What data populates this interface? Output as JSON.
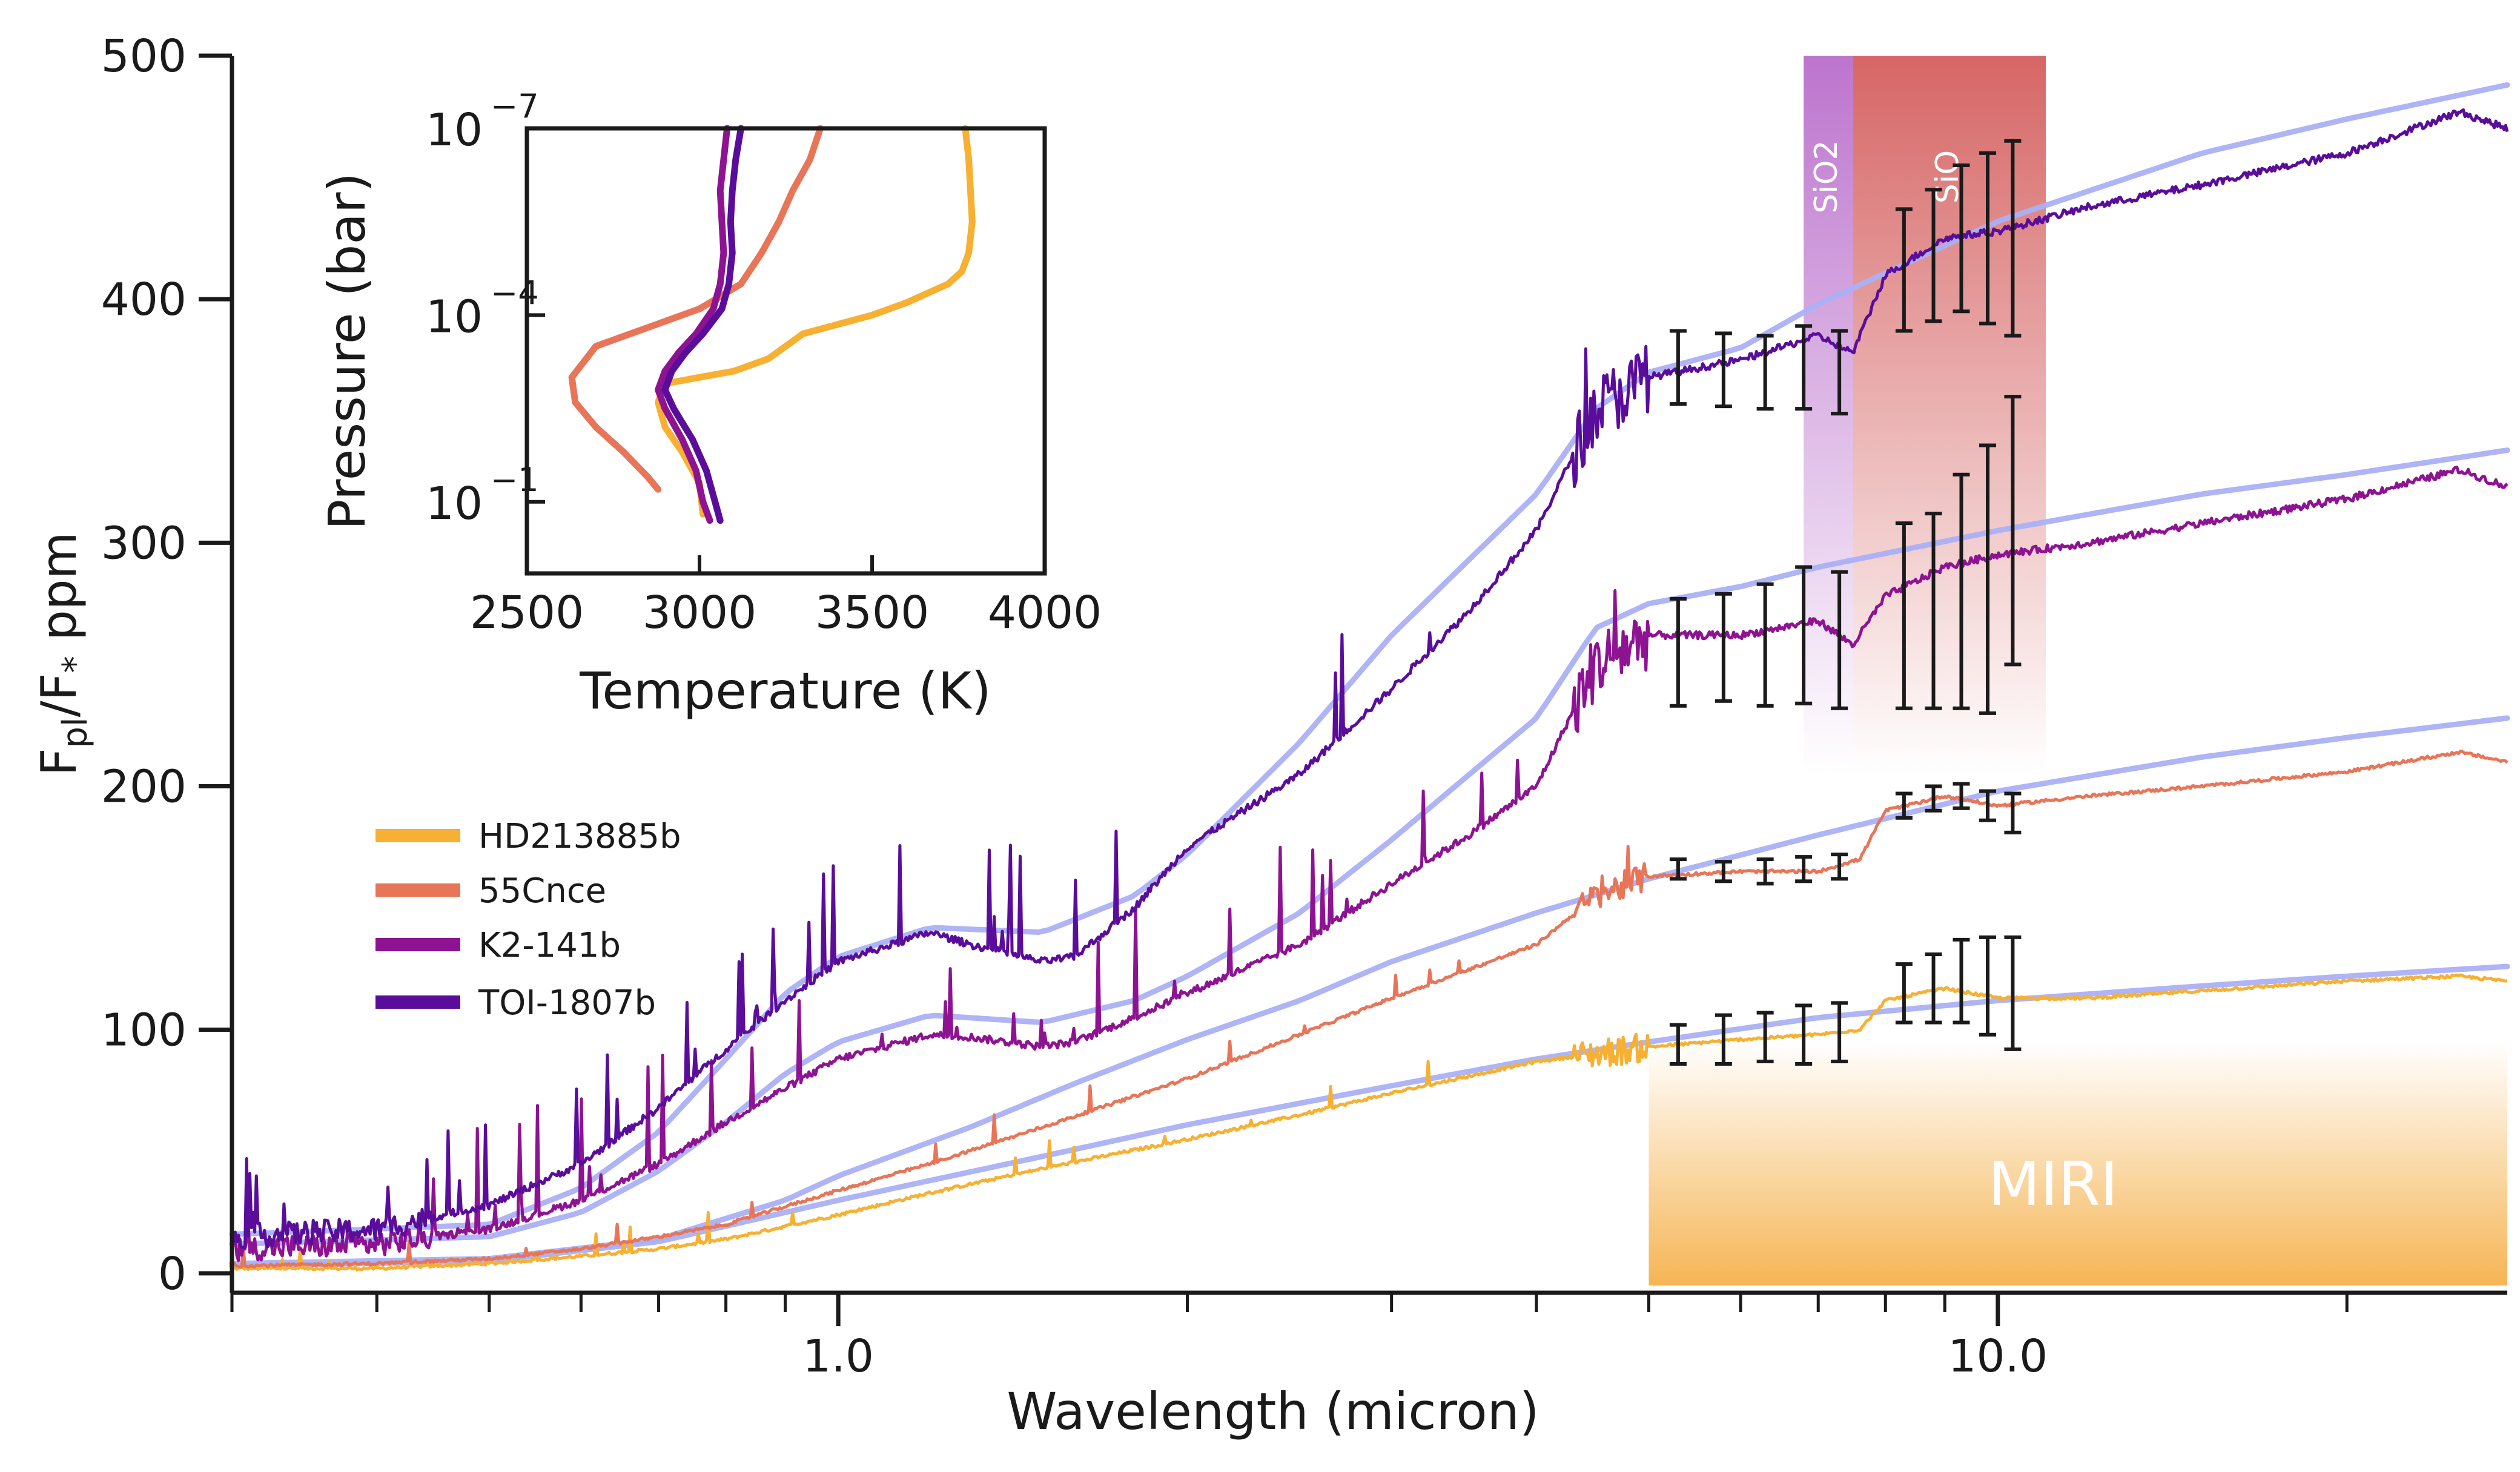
{
  "chart_data": [
    {
      "type": "line",
      "name": "main-spectrum",
      "xlabel": "Wavelength (micron)",
      "ylabel_main": "F",
      "ylabel_sub1": "pl",
      "ylabel_mid": "/F",
      "ylabel_sub2": "*",
      "ylabel_tail": " ppm",
      "xscale": "log",
      "xlim": [
        0.3,
        27.5
      ],
      "ylim": [
        -8,
        500
      ],
      "yticks": [
        0,
        100,
        200,
        300,
        400,
        500
      ],
      "ytick_labels": [
        "0",
        "100",
        "200",
        "300",
        "400",
        "500"
      ],
      "xticks": [
        1.0,
        10.0
      ],
      "xtick_labels": [
        "1.0",
        "10.0"
      ],
      "legend_position": "center-left",
      "series": [
        {
          "name": "HD213885b",
          "color": "#f7b032",
          "x": [
            0.3,
            0.4,
            0.5,
            0.6,
            0.7,
            0.8,
            1.0,
            1.2,
            1.5,
            2.0,
            2.5,
            3.0,
            4.0,
            5.0,
            6.0,
            7.0,
            7.6,
            8.0,
            9.0,
            10.0,
            12.0,
            15.0,
            20.0,
            25.0,
            27.5
          ],
          "y": [
            2,
            2,
            4,
            7,
            10,
            14,
            24,
            33,
            43,
            55,
            65,
            74,
            87,
            93,
            96,
            98,
            100,
            112,
            117,
            113,
            113,
            116,
            120,
            122,
            120
          ]
        },
        {
          "name": "55Cnce",
          "color": "#e87558",
          "x": [
            0.3,
            0.4,
            0.5,
            0.6,
            0.7,
            0.8,
            1.0,
            1.2,
            1.5,
            2.0,
            2.5,
            3.0,
            4.0,
            4.5,
            5.0,
            6.0,
            7.0,
            7.6,
            8.0,
            9.0,
            10.0,
            12.0,
            15.0,
            20.0,
            25.0,
            27.5
          ],
          "y": [
            3,
            4,
            6,
            10,
            15,
            20,
            34,
            45,
            60,
            80,
            98,
            113,
            135,
            155,
            163,
            165,
            165,
            170,
            190,
            196,
            192,
            196,
            200,
            206,
            214,
            210
          ]
        },
        {
          "name": "K2-141b",
          "color": "#8e1393",
          "x": [
            0.3,
            0.4,
            0.5,
            0.6,
            0.7,
            0.8,
            0.9,
            1.0,
            1.2,
            1.3,
            1.5,
            1.6,
            1.8,
            2.0,
            2.5,
            3.0,
            3.5,
            4.0,
            4.5,
            5.0,
            6.0,
            7.0,
            7.5,
            8.0,
            9.0,
            10.0,
            12.0,
            15.0,
            20.0,
            25.0,
            27.5
          ],
          "y": [
            10,
            12,
            18,
            30,
            45,
            62,
            76,
            88,
            98,
            97,
            93,
            95,
            105,
            115,
            135,
            160,
            180,
            200,
            250,
            262,
            262,
            268,
            258,
            278,
            290,
            295,
            300,
            308,
            318,
            330,
            323
          ]
        },
        {
          "name": "TOI-1807b",
          "color": "#5a0d9b",
          "x": [
            0.3,
            0.4,
            0.5,
            0.6,
            0.7,
            0.8,
            0.9,
            1.0,
            1.2,
            1.3,
            1.5,
            1.6,
            1.8,
            2.0,
            2.5,
            3.0,
            3.5,
            4.0,
            4.5,
            5.0,
            6.0,
            7.0,
            7.5,
            8.0,
            9.0,
            10.0,
            12.0,
            15.0,
            20.0,
            25.0,
            27.5
          ],
          "y": [
            15,
            18,
            28,
            45,
            68,
            92,
            112,
            128,
            140,
            135,
            128,
            130,
            150,
            175,
            205,
            240,
            272,
            305,
            355,
            368,
            375,
            385,
            378,
            410,
            425,
            428,
            438,
            447,
            460,
            477,
            470
          ]
        }
      ],
      "models": [
        {
          "name": "model-HD213885b",
          "color": "#aab0f5",
          "x": [
            0.3,
            0.5,
            0.7,
            1.0,
            1.5,
            2.0,
            3.0,
            4.0,
            5.0,
            7.0,
            10.0,
            15.0,
            20.0,
            27.5
          ],
          "y": [
            3,
            5,
            13,
            30,
            48,
            61,
            77,
            88,
            95,
            105,
            112,
            118,
            122,
            126
          ]
        },
        {
          "name": "model-55Cnce",
          "color": "#aab0f5",
          "x": [
            0.3,
            0.5,
            0.7,
            0.9,
            1.0,
            1.3,
            1.6,
            2.0,
            2.5,
            3.0,
            4.0,
            5.0,
            7.0,
            10.0,
            15.0,
            20.0,
            27.5
          ],
          "y": [
            4,
            6,
            14,
            30,
            40,
            60,
            78,
            96,
            112,
            128,
            148,
            162,
            180,
            198,
            212,
            220,
            228
          ]
        },
        {
          "name": "model-K2-141b",
          "color": "#aab0f5",
          "x": [
            0.3,
            0.5,
            0.6,
            0.7,
            0.8,
            0.9,
            1.0,
            1.2,
            1.5,
            1.8,
            2.0,
            2.5,
            3.0,
            4.0,
            4.5,
            5.0,
            6.0,
            7.0,
            10.0,
            15.0,
            20.0,
            27.5
          ],
          "y": [
            12,
            15,
            25,
            42,
            62,
            82,
            95,
            106,
            103,
            112,
            122,
            148,
            178,
            228,
            265,
            275,
            282,
            290,
            305,
            320,
            328,
            338
          ]
        },
        {
          "name": "model-TOI-1807b",
          "color": "#aab0f5",
          "x": [
            0.3,
            0.5,
            0.6,
            0.7,
            0.8,
            0.9,
            1.0,
            1.2,
            1.5,
            1.8,
            2.0,
            2.5,
            3.0,
            4.0,
            4.5,
            5.0,
            6.0,
            7.0,
            10.0,
            15.0,
            20.0,
            27.5
          ],
          "y": [
            16,
            20,
            35,
            58,
            88,
            115,
            130,
            142,
            140,
            155,
            172,
            218,
            262,
            320,
            355,
            370,
            380,
            398,
            432,
            460,
            474,
            488
          ]
        }
      ],
      "errorbars": [
        {
          "name": "eb-HD213885b",
          "x": [
            5.3,
            5.8,
            6.3,
            6.8,
            7.3,
            8.3,
            8.8,
            9.3,
            9.8,
            10.3
          ],
          "y": [
            94,
            96,
            97,
            98,
            99,
            115,
            117,
            120,
            118,
            115
          ],
          "err": [
            8,
            10,
            10,
            12,
            12,
            12,
            14,
            17,
            20,
            23
          ]
        },
        {
          "name": "eb-55Cnce",
          "x": [
            5.3,
            5.8,
            6.3,
            6.8,
            7.3,
            8.3,
            8.8,
            9.3,
            9.8,
            10.3
          ],
          "y": [
            166,
            165,
            165,
            166,
            167,
            192,
            195,
            196,
            192,
            189
          ],
          "err": [
            4,
            4,
            5,
            5,
            5,
            5,
            5,
            5,
            6,
            8
          ]
        },
        {
          "name": "eb-K2-141b",
          "x": [
            5.3,
            5.8,
            6.3,
            6.8,
            7.3,
            8.3,
            8.8,
            9.3,
            9.8,
            10.3
          ],
          "y": [
            255,
            257,
            258,
            262,
            260,
            270,
            272,
            280,
            285,
            305
          ],
          "err": [
            22,
            22,
            25,
            28,
            28,
            38,
            40,
            48,
            55,
            55
          ]
        },
        {
          "name": "eb-TOI-1807b",
          "x": [
            5.3,
            5.8,
            6.3,
            6.8,
            7.3,
            8.3,
            8.8,
            9.3,
            9.8,
            10.3
          ],
          "y": [
            372,
            371,
            370,
            372,
            370,
            412,
            418,
            425,
            425,
            425
          ],
          "err": [
            15,
            15,
            15,
            17,
            17,
            25,
            27,
            30,
            35,
            40
          ]
        }
      ],
      "bands": [
        {
          "name": "SiO2",
          "label": "SiO2",
          "x0": 6.8,
          "x1": 7.5,
          "color": "#b565c8"
        },
        {
          "name": "SiO",
          "label": "SiO",
          "x0": 7.5,
          "x1": 11.0,
          "color": "#d25555"
        }
      ],
      "miri": {
        "label": "MIRI",
        "x0": 5.0,
        "x1": 27.5,
        "ytop": 95,
        "color": "#f5b14c"
      }
    },
    {
      "type": "line",
      "name": "inset-pt-profile",
      "xlabel": "Temperature (K)",
      "ylabel": "Pressure (bar)",
      "yscale": "log",
      "xlim": [
        2500,
        4000
      ],
      "ylim_exp": [
        -7,
        0.15
      ],
      "xticks": [
        2500,
        3000,
        3500,
        4000
      ],
      "xtick_labels": [
        "2500",
        "3000",
        "3500",
        "4000"
      ],
      "yticks_exp": [
        -7,
        -4,
        -1
      ],
      "ytick_base": "10",
      "ytick_exps": [
        "−7",
        "−4",
        "−1"
      ],
      "series": [
        {
          "name": "HD213885b",
          "color": "#f7b032",
          "T": [
            3770,
            3780,
            3785,
            3790,
            3780,
            3760,
            3720,
            3600,
            3500,
            3400,
            3300,
            3250,
            3200,
            3100,
            3000,
            2900,
            2880,
            2900,
            2950,
            3000,
            3010
          ],
          "logP": [
            -7,
            -6.5,
            -6,
            -5.5,
            -5,
            -4.7,
            -4.5,
            -4.2,
            -4.0,
            -3.85,
            -3.7,
            -3.5,
            -3.3,
            -3.1,
            -3.0,
            -2.9,
            -2.6,
            -2.2,
            -1.8,
            -1.3,
            -0.8
          ]
        },
        {
          "name": "55Cnce",
          "color": "#e87558",
          "T": [
            3350,
            3320,
            3270,
            3230,
            3180,
            3120,
            3000,
            2850,
            2700,
            2630,
            2640,
            2700,
            2780,
            2850,
            2880
          ],
          "logP": [
            -7,
            -6.5,
            -6,
            -5.5,
            -5,
            -4.5,
            -4.1,
            -3.8,
            -3.5,
            -3.0,
            -2.6,
            -2.2,
            -1.8,
            -1.4,
            -1.2
          ]
        },
        {
          "name": "K2-141b",
          "color": "#8e1393",
          "T": [
            3080,
            3070,
            3060,
            3065,
            3070,
            3060,
            3040,
            2990,
            2940,
            2900,
            2880,
            2900,
            2950,
            2990,
            3010,
            3030
          ],
          "logP": [
            -7,
            -6.5,
            -6,
            -5.5,
            -5,
            -4.5,
            -4.1,
            -3.7,
            -3.4,
            -3.1,
            -2.8,
            -2.5,
            -2.0,
            -1.5,
            -1.0,
            -0.7
          ]
        },
        {
          "name": "TOI-1807b",
          "color": "#5a0d9b",
          "T": [
            3120,
            3105,
            3095,
            3090,
            3095,
            3085,
            3065,
            3010,
            2960,
            2920,
            2900,
            2925,
            2980,
            3020,
            3045,
            3060
          ],
          "logP": [
            -7,
            -6.5,
            -6,
            -5.5,
            -5,
            -4.5,
            -4.1,
            -3.7,
            -3.4,
            -3.1,
            -2.8,
            -2.5,
            -2.0,
            -1.5,
            -1.0,
            -0.7
          ]
        }
      ]
    }
  ]
}
